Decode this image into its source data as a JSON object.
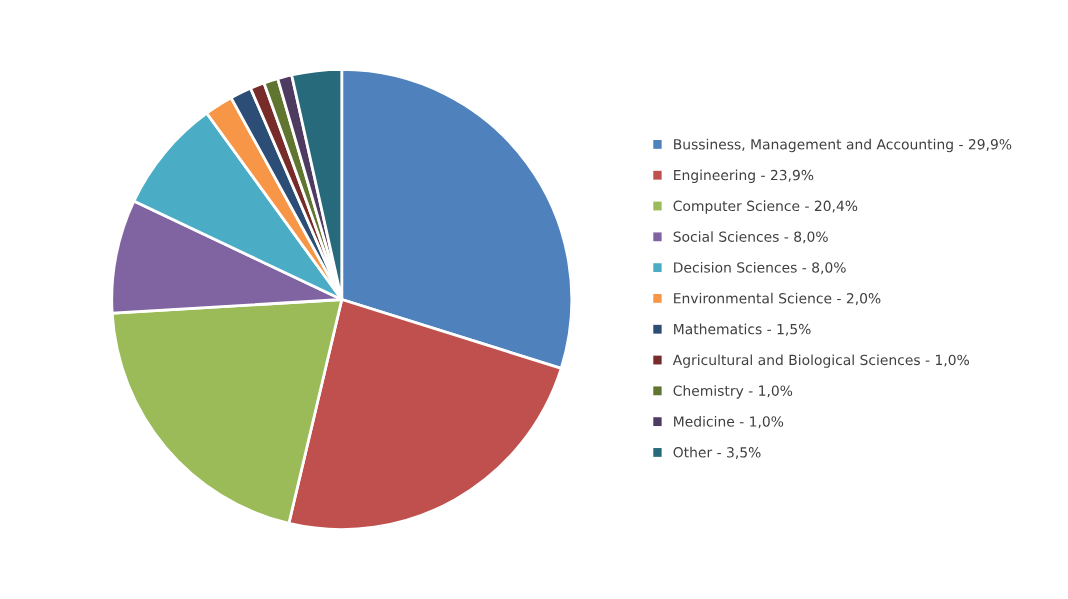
{
  "chart_data": {
    "type": "pie",
    "categories": [
      "Bussiness, Management and Accounting - 29,9%",
      "Engineering - 23,9%",
      "Computer Science - 20,4%",
      "Social Sciences - 8,0%",
      "Decision Sciences - 8,0%",
      "Environmental Science - 2,0%",
      "Mathematics - 1,5%",
      "Agricultural and Biological Sciences - 1,0%",
      "Chemistry - 1,0%",
      "Medicine - 1,0%",
      "Other - 3,5%"
    ],
    "values": [
      29.9,
      23.9,
      20.4,
      8.0,
      8.0,
      2.0,
      1.5,
      1.0,
      1.0,
      1.0,
      3.5
    ],
    "colors": [
      "#4f81bd",
      "#c0504d",
      "#9bbb59",
      "#8064a2",
      "#4bacc6",
      "#f79646",
      "#2c4d75",
      "#772c2a",
      "#5f7530",
      "#4d3b62",
      "#276a7c"
    ],
    "legend": "right"
  }
}
